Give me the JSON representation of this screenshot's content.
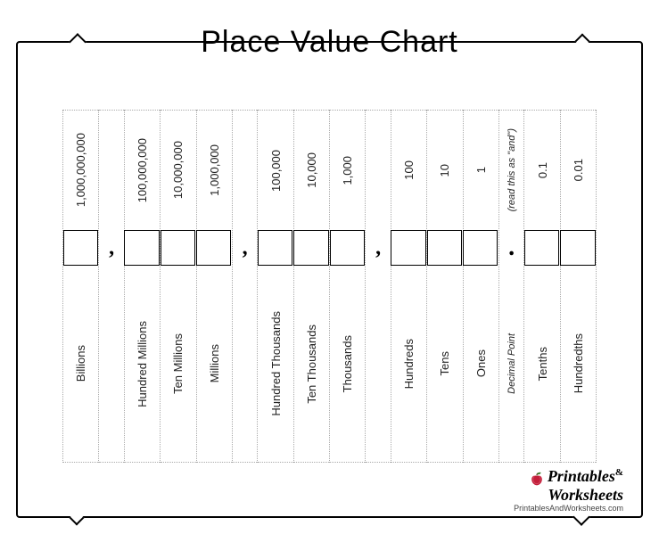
{
  "title": "Place Value Chart",
  "columns": [
    {
      "value": "1,000,000,000",
      "label": "Billions",
      "type": "digit"
    },
    {
      "value": "",
      "label": "",
      "type": "sep",
      "symbol": ","
    },
    {
      "value": "100,000,000",
      "label": "Hundred Millions",
      "type": "digit"
    },
    {
      "value": "10,000,000",
      "label": "Ten Millions",
      "type": "digit"
    },
    {
      "value": "1,000,000",
      "label": "Millions",
      "type": "digit"
    },
    {
      "value": "",
      "label": "",
      "type": "sep",
      "symbol": ","
    },
    {
      "value": "100,000",
      "label": "Hundred Thousands",
      "type": "digit"
    },
    {
      "value": "10,000",
      "label": "Ten Thousands",
      "type": "digit"
    },
    {
      "value": "1,000",
      "label": "Thousands",
      "type": "digit"
    },
    {
      "value": "",
      "label": "",
      "type": "sep",
      "symbol": ","
    },
    {
      "value": "100",
      "label": "Hundreds",
      "type": "digit"
    },
    {
      "value": "10",
      "label": "Tens",
      "type": "digit"
    },
    {
      "value": "1",
      "label": "Ones",
      "type": "digit"
    },
    {
      "value": "(read this as \"and\")",
      "label": "Decimal Point",
      "type": "sep",
      "symbol": ".",
      "italic": true
    },
    {
      "value": "0.1",
      "label": "Tenths",
      "type": "digit"
    },
    {
      "value": "0.01",
      "label": "Hundredths",
      "type": "digit"
    }
  ],
  "logo": {
    "line1": "Printables",
    "amp": "&",
    "line2": "Worksheets",
    "url": "PrintablesAndWorksheets.com"
  },
  "style": {
    "title_fontsize": 34,
    "cell_fontsize": 13,
    "border_color": "#000000",
    "dotted_color": "#aaaaaa",
    "background": "#ffffff"
  }
}
